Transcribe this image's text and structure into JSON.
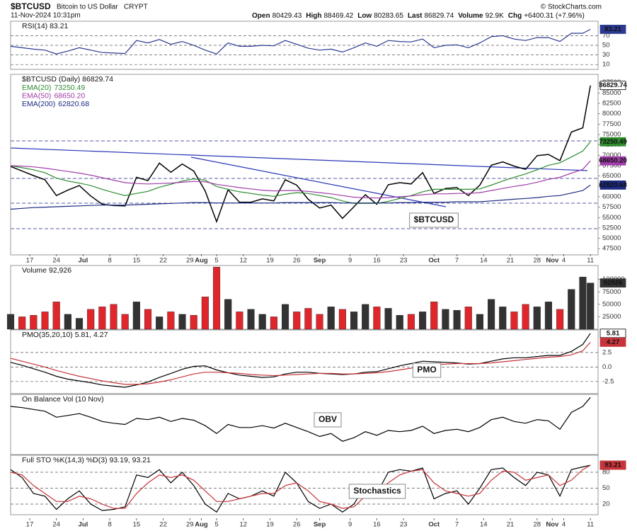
{
  "header": {
    "symbol": "$BTCUSD",
    "name": "Bitcoin to US Dollar",
    "exchange": "CRYPT",
    "brand": "© StockCharts.com",
    "timestamp": "11-Nov-2024 10:31pm",
    "quote": [
      {
        "label": "Open",
        "value": "80429.43"
      },
      {
        "label": "High",
        "value": "88469.42"
      },
      {
        "label": "Low",
        "value": "80283.65"
      },
      {
        "label": "Last",
        "value": "86829.74"
      },
      {
        "label": "Volume",
        "value": "92.9K"
      },
      {
        "label": "Chg",
        "value": "+6400.31 (+7.96%)"
      }
    ]
  },
  "chart_data": {
    "type": "financial",
    "x": [
      "2024-06-12",
      "2024-06-15",
      "2024-06-18",
      "2024-06-21",
      "2024-06-24",
      "2024-06-27",
      "2024-06-30",
      "2024-07-03",
      "2024-07-06",
      "2024-07-09",
      "2024-07-12",
      "2024-07-15",
      "2024-07-18",
      "2024-07-21",
      "2024-07-24",
      "2024-07-27",
      "2024-07-30",
      "2024-08-02",
      "2024-08-05",
      "2024-08-08",
      "2024-08-11",
      "2024-08-14",
      "2024-08-17",
      "2024-08-20",
      "2024-08-23",
      "2024-08-26",
      "2024-08-29",
      "2024-09-01",
      "2024-09-04",
      "2024-09-07",
      "2024-09-10",
      "2024-09-13",
      "2024-09-16",
      "2024-09-19",
      "2024-09-22",
      "2024-09-25",
      "2024-09-28",
      "2024-10-01",
      "2024-10-04",
      "2024-10-07",
      "2024-10-10",
      "2024-10-13",
      "2024-10-16",
      "2024-10-19",
      "2024-10-22",
      "2024-10-25",
      "2024-10-28",
      "2024-10-31",
      "2024-11-03",
      "2024-11-06",
      "2024-11-09",
      "2024-11-11"
    ],
    "xlim": [
      "2024-06-12",
      "2024-11-13"
    ],
    "xticks": [
      {
        "value": "2024-06-17",
        "label": "17"
      },
      {
        "value": "2024-06-24",
        "label": "24"
      },
      {
        "value": "2024-07-01",
        "label": "Jul"
      },
      {
        "value": "2024-07-08",
        "label": "8"
      },
      {
        "value": "2024-07-15",
        "label": "15"
      },
      {
        "value": "2024-07-22",
        "label": "22"
      },
      {
        "value": "2024-07-29",
        "label": "29"
      },
      {
        "value": "2024-08-01",
        "label": "Aug"
      },
      {
        "value": "2024-08-05",
        "label": "5"
      },
      {
        "value": "2024-08-12",
        "label": "12"
      },
      {
        "value": "2024-08-19",
        "label": "19"
      },
      {
        "value": "2024-08-26",
        "label": "26"
      },
      {
        "value": "2024-09-01",
        "label": "Sep"
      },
      {
        "value": "2024-09-09",
        "label": "9"
      },
      {
        "value": "2024-09-16",
        "label": "16"
      },
      {
        "value": "2024-09-23",
        "label": "23"
      },
      {
        "value": "2024-10-01",
        "label": "Oct"
      },
      {
        "value": "2024-10-07",
        "label": "7"
      },
      {
        "value": "2024-10-14",
        "label": "14"
      },
      {
        "value": "2024-10-21",
        "label": "21"
      },
      {
        "value": "2024-10-28",
        "label": "28"
      },
      {
        "value": "2024-11-01",
        "label": "Nov"
      },
      {
        "value": "2024-11-04",
        "label": "4"
      },
      {
        "value": "2024-11-11",
        "label": "11"
      }
    ],
    "panels": [
      {
        "type": "line",
        "title": "RSI(14) 83.21",
        "ylim": [
          0,
          100
        ],
        "yticks": [
          10,
          30,
          50,
          70
        ],
        "grid": true,
        "series": [
          {
            "color": "#2b3a8f",
            "last_label": "83.21",
            "values": [
              48,
              45,
              42,
              40,
              32,
              38,
              45,
              40,
              35,
              34,
              33,
              60,
              55,
              62,
              52,
              58,
              50,
              40,
              32,
              55,
              48,
              48,
              50,
              49,
              60,
              52,
              44,
              40,
              42,
              36,
              45,
              55,
              48,
              60,
              58,
              57,
              63,
              45,
              50,
              51,
              45,
              55,
              68,
              70,
              63,
              60,
              66,
              66,
              58,
              75,
              75,
              83.21
            ]
          }
        ]
      },
      {
        "type": "line",
        "title": "$BTCUSD (Daily) 86829.74",
        "annotation": "$BTCUSD",
        "ylim": [
          46000,
          89500
        ],
        "yticks": [
          47500,
          50000,
          52500,
          55000,
          57500,
          60000,
          62500,
          65000,
          67500,
          70000,
          72500,
          75000,
          77500,
          80000,
          82500,
          85000,
          87500
        ],
        "grid": false,
        "series": [
          {
            "color": "#000000",
            "last_label": "86829.74",
            "values": [
              67300,
              66200,
              65100,
              64100,
              60300,
              61600,
              62700,
              60200,
              58200,
              57900,
              57800,
              64700,
              63900,
              68100,
              65900,
              67900,
              66200,
              61400,
              54000,
              61700,
              58700,
              58700,
              59500,
              59000,
              64100,
              62800,
              59400,
              57300,
              58000,
              54800,
              57600,
              60500,
              58200,
              62900,
              63400,
              63100,
              65800,
              60800,
              62000,
              62200,
              60300,
              62800,
              67600,
              68400,
              67400,
              66600,
              69900,
              70200,
              68700,
              75600,
              76600,
              86829.74
            ]
          },
          {
            "name": "EMA(20)",
            "color": "#2e8b2e",
            "last_label": "73250.49",
            "values": [
              67500,
              67000,
              66500,
              65800,
              64500,
              63800,
              63300,
              62700,
              61800,
              61000,
              60300,
              60800,
              61300,
              62300,
              63000,
              63800,
              64300,
              64000,
              62500,
              61800,
              61200,
              60800,
              60400,
              60100,
              60600,
              61000,
              60800,
              60300,
              59800,
              59000,
              58400,
              58400,
              58400,
              58900,
              59600,
              60300,
              61200,
              61800,
              61800,
              61800,
              61800,
              61900,
              62800,
              63800,
              64700,
              65500,
              66500,
              67600,
              68200,
              69600,
              71000,
              73250.49
            ]
          },
          {
            "name": "EMA(50)",
            "color": "#a03ca8",
            "last_label": "68650.20",
            "values": [
              67500,
              67400,
              67200,
              66900,
              66500,
              66100,
              65700,
              65200,
              64600,
              64000,
              63400,
              63200,
              63100,
              63200,
              63300,
              63500,
              63700,
              63600,
              63000,
              62600,
              62200,
              61900,
              61600,
              61400,
              61500,
              61500,
              61300,
              61000,
              60700,
              60300,
              59900,
              59800,
              59700,
              59800,
              60000,
              60200,
              60500,
              60700,
              60700,
              60800,
              60800,
              61000,
              61500,
              62000,
              62500,
              62900,
              63500,
              64200,
              64700,
              65700,
              66600,
              68650.2
            ]
          },
          {
            "name": "EMA(200)",
            "color": "#1c2a80",
            "last_label": "62820.68",
            "values": [
              57000,
              57200,
              57400,
              57500,
              57600,
              57700,
              57800,
              57900,
              58000,
              58000,
              58000,
              58100,
              58200,
              58300,
              58400,
              58500,
              58600,
              58600,
              58500,
              58500,
              58500,
              58500,
              58500,
              58500,
              58600,
              58600,
              58600,
              58600,
              58600,
              58500,
              58500,
              58500,
              58500,
              58500,
              58600,
              58600,
              58700,
              58700,
              58700,
              58800,
              58800,
              58800,
              59000,
              59200,
              59400,
              59600,
              59800,
              60100,
              60300,
              60900,
              61500,
              62820.68
            ]
          }
        ]
      },
      {
        "type": "bar",
        "title": "Volume 92,926",
        "ylim": [
          0,
          128000
        ],
        "yticks": [
          25000,
          50000,
          75000,
          100000
        ],
        "grid": false,
        "series": [
          {
            "color": "#333333",
            "down_color": "#e0262b",
            "last_label": "92926",
            "values": [
              30000,
              25000,
              28000,
              35000,
              55000,
              30000,
              22000,
              40000,
              45000,
              50000,
              30000,
              55000,
              40000,
              25000,
              35000,
              30000,
              28000,
              65000,
              125000,
              60000,
              35000,
              40000,
              30000,
              25000,
              50000,
              35000,
              42000,
              30000,
              45000,
              40000,
              35000,
              50000,
              45000,
              42000,
              28000,
              30000,
              35000,
              55000,
              40000,
              38000,
              45000,
              30000,
              60000,
              45000,
              35000,
              50000,
              45000,
              55000,
              40000,
              80000,
              105000,
              92926
            ]
          }
        ]
      },
      {
        "type": "line",
        "title": "PMO(35,20,10) 5.81, 4.27",
        "annotation": "PMO",
        "ylim": [
          -4.6,
          6.4
        ],
        "yticks": [
          -2.5,
          {
            "value": 0,
            "label": "0.0"
          },
          2.5
        ],
        "grid": true,
        "series": [
          {
            "color": "#000000",
            "last_label": "5.81",
            "values": [
              0.8,
              0.3,
              -0.3,
              -0.9,
              -1.6,
              -2.1,
              -2.4,
              -2.7,
              -3.1,
              -3.3,
              -3.5,
              -3.1,
              -2.6,
              -1.8,
              -1.1,
              -0.4,
              0.1,
              0.2,
              -0.5,
              -1.0,
              -1.4,
              -1.6,
              -1.8,
              -1.7,
              -1.2,
              -0.9,
              -0.9,
              -1.1,
              -1.2,
              -1.3,
              -1.2,
              -0.9,
              -0.8,
              -0.3,
              0.2,
              0.6,
              1.0,
              0.9,
              0.8,
              0.7,
              0.5,
              0.6,
              1.0,
              1.4,
              1.6,
              1.6,
              1.8,
              2.0,
              2.0,
              2.7,
              3.9,
              5.81
            ]
          },
          {
            "color": "#c8343a",
            "last_label": "4.27",
            "values": [
              1.5,
              1.0,
              0.5,
              0.0,
              -0.6,
              -1.1,
              -1.6,
              -2.0,
              -2.4,
              -2.7,
              -3.0,
              -3.0,
              -2.9,
              -2.6,
              -2.2,
              -1.7,
              -1.2,
              -0.9,
              -0.9,
              -1.0,
              -1.1,
              -1.3,
              -1.4,
              -1.5,
              -1.4,
              -1.3,
              -1.2,
              -1.1,
              -1.1,
              -1.2,
              -1.2,
              -1.1,
              -1.0,
              -0.8,
              -0.5,
              -0.2,
              0.2,
              0.4,
              0.5,
              0.6,
              0.6,
              0.6,
              0.7,
              0.9,
              1.1,
              1.3,
              1.5,
              1.7,
              1.8,
              2.1,
              2.8,
              4.27
            ]
          }
        ]
      },
      {
        "type": "line",
        "title": "On Balance Vol (10 Nov)",
        "annotation": "OBV",
        "ylim": [
          0,
          100
        ],
        "yticks": [],
        "grid": false,
        "series": [
          {
            "color": "#000000",
            "values": [
              80,
              78,
              75,
              72,
              62,
              65,
              68,
              62,
              55,
              52,
              50,
              60,
              58,
              62,
              55,
              60,
              57,
              48,
              35,
              50,
              45,
              45,
              48,
              44,
              52,
              45,
              38,
              30,
              35,
              22,
              28,
              38,
              32,
              40,
              38,
              40,
              47,
              35,
              40,
              42,
              38,
              45,
              58,
              62,
              55,
              52,
              58,
              56,
              42,
              70,
              80,
              95
            ]
          }
        ]
      },
      {
        "type": "line",
        "title": "Full STO %K(14,3) %D(3) 93.19, 93.21",
        "annotation": "Stochastics",
        "ylim": [
          0,
          112
        ],
        "yticks": [
          20,
          50,
          80
        ],
        "grid": true,
        "series": [
          {
            "color": "#000000",
            "last_label": "93.19",
            "values": [
              85,
              70,
              40,
              35,
              10,
              30,
              45,
              20,
              8,
              10,
              15,
              75,
              70,
              85,
              60,
              80,
              55,
              20,
              5,
              40,
              30,
              35,
              45,
              35,
              80,
              60,
              25,
              12,
              20,
              5,
              20,
              55,
              40,
              80,
              85,
              82,
              88,
              30,
              40,
              45,
              20,
              50,
              85,
              88,
              70,
              55,
              80,
              75,
              35,
              85,
              90,
              93.19
            ]
          },
          {
            "color": "#c8343a",
            "last_label": "93.21",
            "values": [
              80,
              75,
              55,
              40,
              25,
              25,
              35,
              30,
              20,
              12,
              12,
              40,
              60,
              75,
              70,
              75,
              65,
              45,
              25,
              25,
              30,
              35,
              40,
              40,
              55,
              60,
              45,
              25,
              20,
              12,
              15,
              35,
              45,
              60,
              75,
              82,
              85,
              60,
              45,
              40,
              35,
              40,
              65,
              82,
              80,
              65,
              70,
              75,
              55,
              65,
              85,
              93.21
            ]
          }
        ]
      }
    ]
  }
}
